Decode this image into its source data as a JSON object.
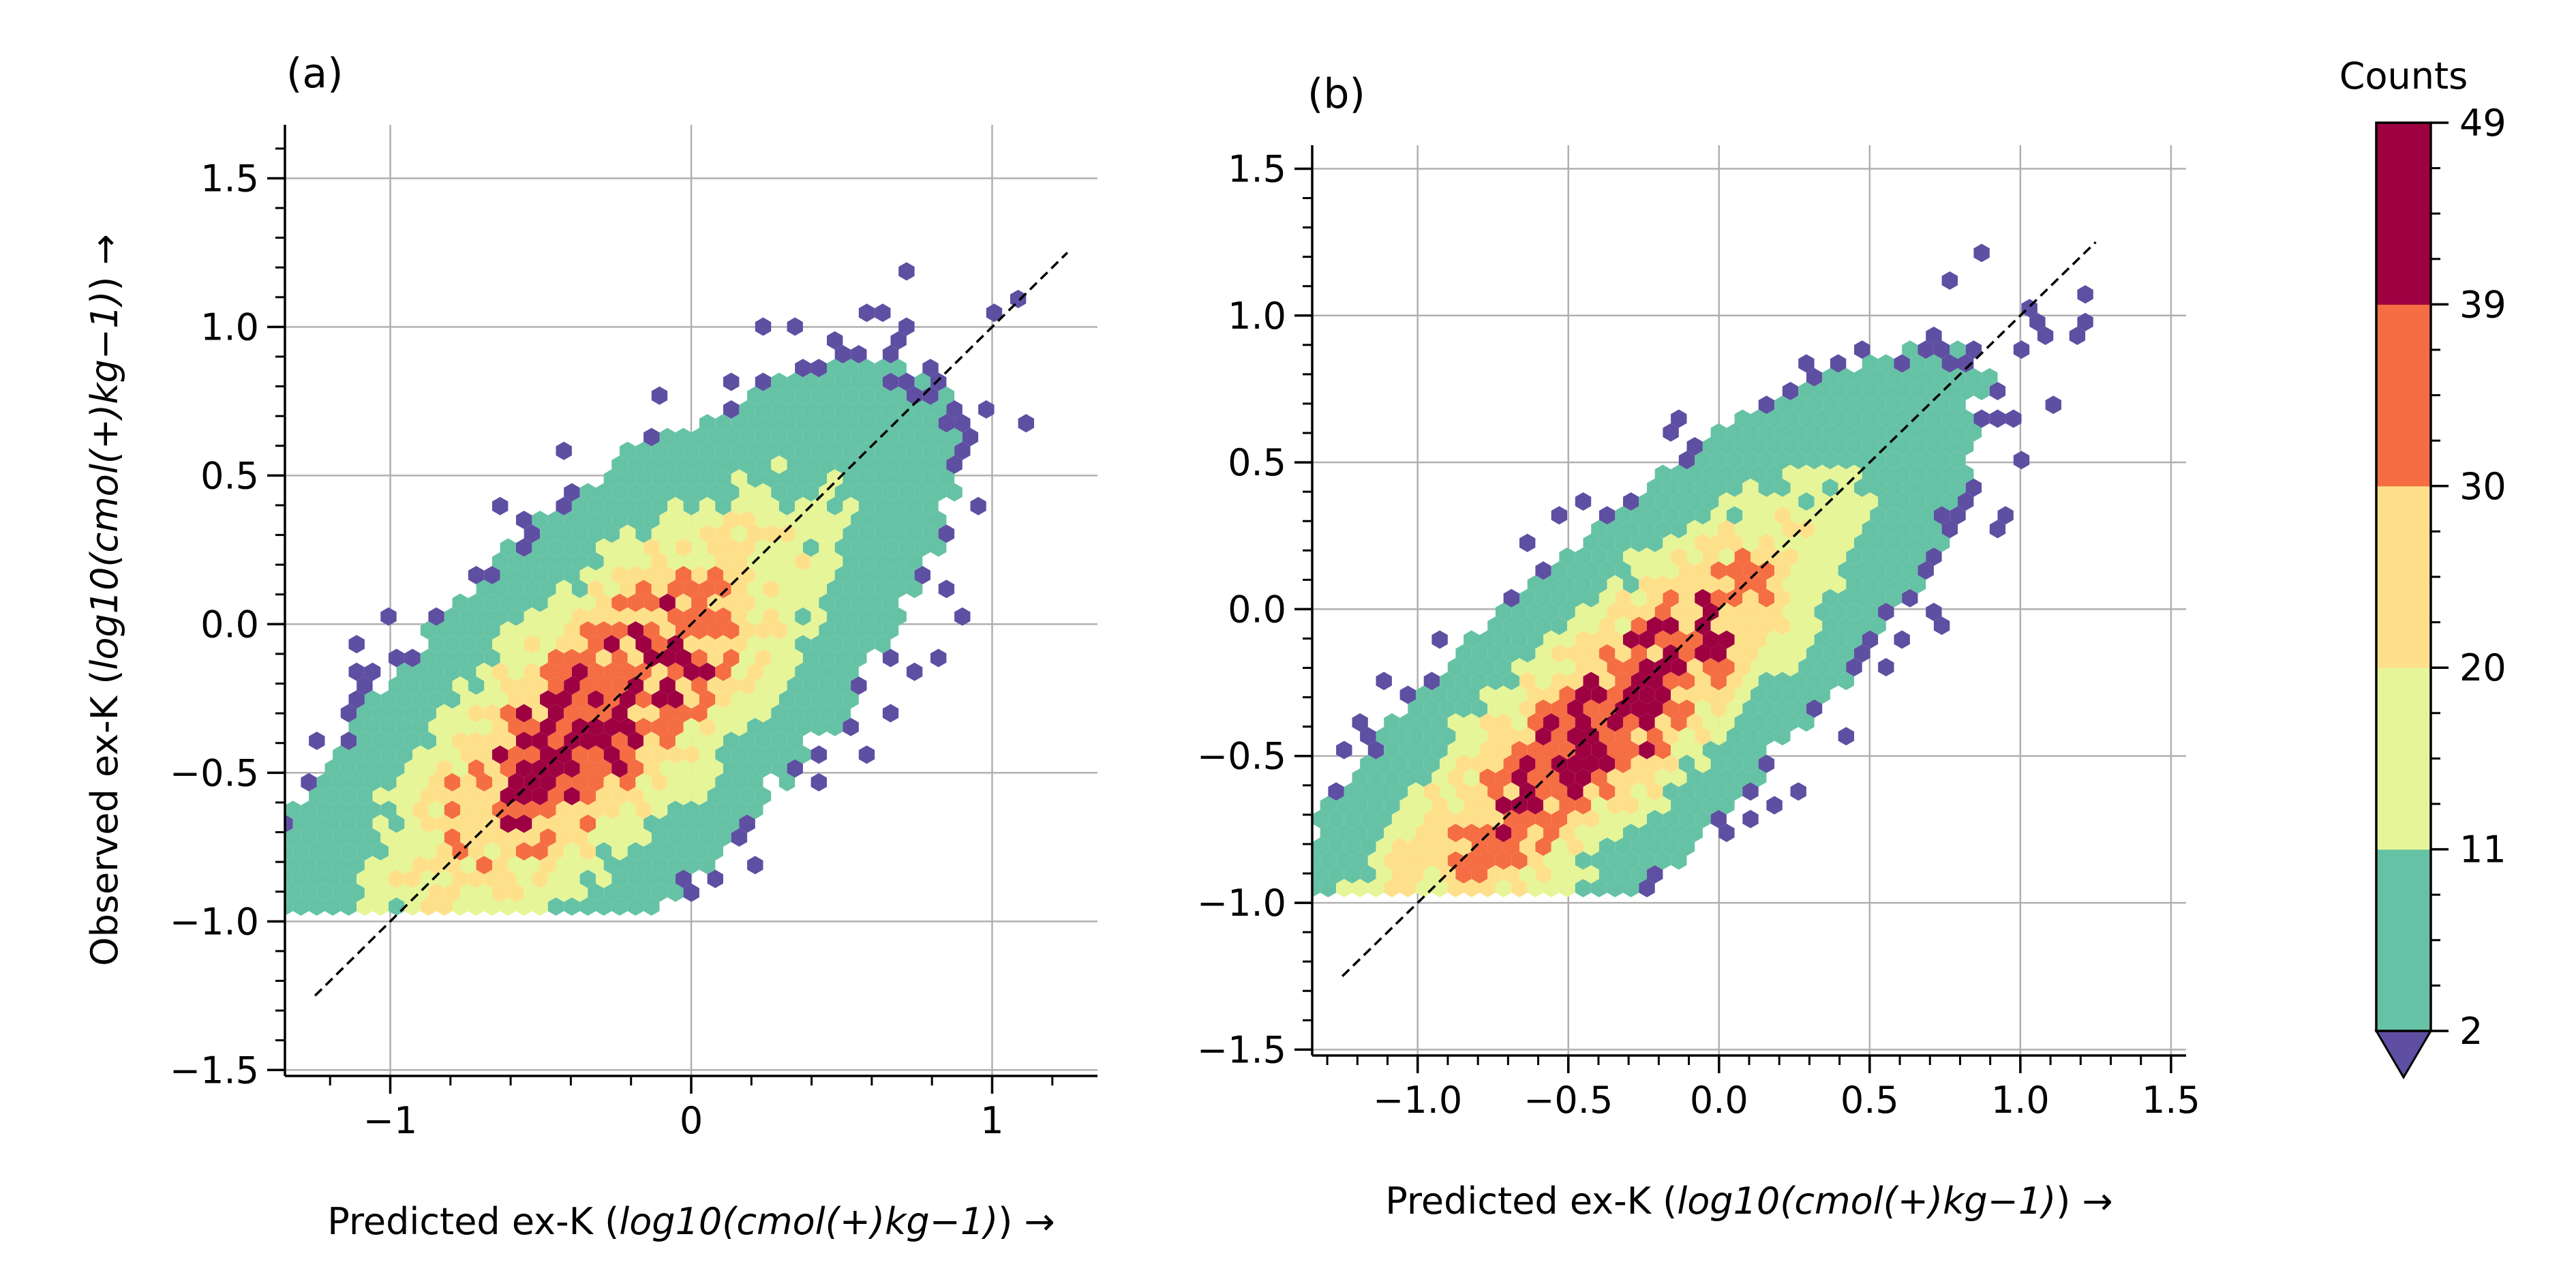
{
  "chart_data": [
    {
      "panel_label": "(a)",
      "type": "hexbin",
      "xlabel_prefix": "Predicted ex-K (",
      "xlabel_unit": "log10(cmol(+)kg−1)",
      "xlabel_suffix": ") →",
      "ylabel_prefix": "Observed ex-K (",
      "ylabel_unit": "log10(cmol(+)kg−1)",
      "ylabel_suffix": ") →",
      "xlim": [
        -1.35,
        1.35
      ],
      "ylim": [
        -1.52,
        1.68
      ],
      "x_ticks": [
        -1,
        0,
        1
      ],
      "x_tick_labels": [
        "−1",
        "0",
        "1"
      ],
      "x_minor_step": 0.2,
      "y_ticks": [
        -1.5,
        -1.0,
        -0.5,
        0.0,
        0.5,
        1.0,
        1.5
      ],
      "y_tick_labels": [
        "−1.5",
        "−1.0",
        "−0.5",
        "0.0",
        "0.5",
        "1.0",
        "1.5"
      ],
      "y_minor_step": 0.1,
      "grid": true,
      "reference_line": {
        "style": "dashed",
        "x": [
          -1.25,
          1.25
        ],
        "y": [
          -1.25,
          1.25
        ]
      },
      "density": {
        "center_x": -0.3,
        "center_y": -0.3,
        "spread_along": 0.62,
        "spread_across": 0.24,
        "peak_count": 49
      }
    },
    {
      "panel_label": "(b)",
      "type": "hexbin",
      "xlabel_prefix": "Predicted ex-K (",
      "xlabel_unit": "log10(cmol(+)kg−1)",
      "xlabel_suffix": ") →",
      "xlim": [
        -1.35,
        1.55
      ],
      "ylim": [
        -1.52,
        1.58
      ],
      "x_ticks": [
        -1.0,
        -0.5,
        0.0,
        0.5,
        1.0,
        1.5
      ],
      "x_tick_labels": [
        "−1.0",
        "−0.5",
        "0.0",
        "0.5",
        "1.0",
        "1.5"
      ],
      "x_minor_step": 0.1,
      "y_ticks": [
        -1.5,
        -1.0,
        -0.5,
        0.0,
        0.5,
        1.0,
        1.5
      ],
      "y_tick_labels": [
        "−1.5",
        "−1.0",
        "−0.5",
        "0.0",
        "0.5",
        "1.0",
        "1.5"
      ],
      "y_minor_step": 0.1,
      "grid": true,
      "reference_line": {
        "style": "dashed",
        "x": [
          -1.25,
          1.25
        ],
        "y": [
          -1.25,
          1.25
        ]
      },
      "density": {
        "center_x": -0.4,
        "center_y": -0.4,
        "spread_along": 0.7,
        "spread_across": 0.2,
        "peak_count": 49
      }
    }
  ],
  "colorbar": {
    "title": "Counts",
    "boundaries": [
      2,
      11,
      20,
      30,
      39,
      49
    ],
    "tick_labels": [
      "2",
      "11",
      "20",
      "30",
      "39",
      "49"
    ],
    "bin_colors": [
      "#66c2a5",
      "#e6f598",
      "#fee08b",
      "#f46d43",
      "#9e0142"
    ],
    "under_color": "#5e4fa2"
  }
}
